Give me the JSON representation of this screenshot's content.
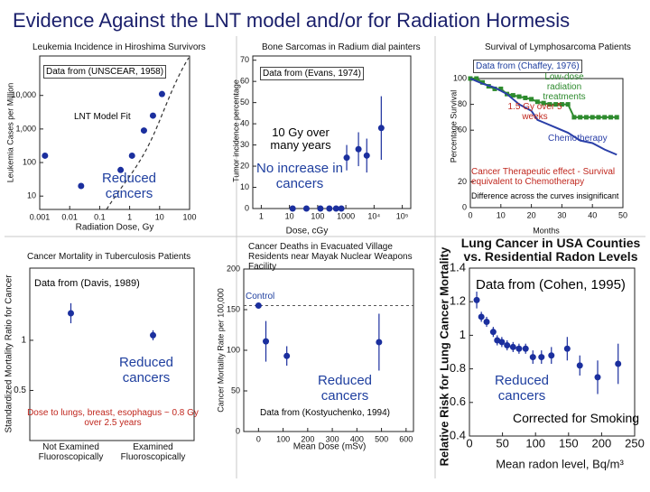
{
  "slide_title": "Evidence Against the LNT model and/or for Radiation Hormesis",
  "chart_data": [
    {
      "type": "scatter",
      "title": "Leukemia Incidence in Hiroshima Survivors",
      "x_label": "Radiation Dose, Gy",
      "y_label": "Leukemia Cases per Million",
      "xscale": "log",
      "yscale": "log",
      "xlim": [
        0.001,
        100
      ],
      "ylim": [
        4,
        150000
      ],
      "xticks": [
        0.001,
        0.01,
        0.1,
        1,
        10,
        100
      ],
      "yticks": [
        10,
        100,
        {
          "value": 1000,
          "label": "1,000"
        },
        {
          "value": 10000,
          "label": "10,000"
        }
      ],
      "annotations": [
        "Data from (UNSCEAR, 1958)",
        "LNT Model Fit",
        "Reduced cancers"
      ],
      "series": [
        {
          "color": "#1b2f9e",
          "x": [
            0.0015,
            0.024,
            0.5,
            1.2,
            3,
            6,
            12
          ],
          "values": [
            160,
            20,
            60,
            160,
            900,
            2500,
            11000
          ]
        }
      ]
    },
    {
      "type": "scatter",
      "title": "Bone Sarcomas in Radium dial painters",
      "x_label": "Dose, cGy",
      "y_label": "Tumor incidence percentage",
      "xscale": "log",
      "xlim": [
        0.5,
        200000
      ],
      "ylim": [
        0,
        72
      ],
      "xticks": [
        1,
        10,
        100,
        1000,
        {
          "value": 10000,
          "label": "10⁴"
        },
        {
          "value": 100000,
          "label": "10⁵"
        }
      ],
      "yticks": [
        0,
        10,
        20,
        30,
        40,
        50,
        60,
        70
      ],
      "annotations": [
        "Data from (Evans, 1974)",
        "10 Gy over many years",
        "No increase in cancers"
      ],
      "series": [
        {
          "color": "#1b2f9e",
          "x": [
            13,
            40,
            125,
            260,
            450,
            690,
            1070,
            2800,
            5500,
            18000
          ],
          "values": [
            0,
            0,
            0,
            0,
            0,
            0,
            24,
            28,
            25,
            38
          ],
          "errors": [
            null,
            null,
            null,
            null,
            null,
            null,
            6,
            8,
            8,
            15
          ]
        }
      ]
    },
    {
      "type": "line",
      "title": "Survival of Lymphosarcoma Patients",
      "x_label": "Months",
      "y_label": "Percentage Survival",
      "xlim": [
        0,
        50
      ],
      "ylim": [
        0,
        100
      ],
      "xticks": [
        0,
        10,
        20,
        30,
        40,
        50
      ],
      "yticks": [
        0,
        20,
        60,
        80,
        100
      ],
      "annotations": [
        "Data from (Chaffey, 1976)",
        "1.5 Gy over 5 weeks",
        "Cancer Therapeutic effect - Survival equivalent to Chemotherapy",
        "Difference across the curves insignificant"
      ],
      "series": [
        {
          "name": "Low-dose radiation treatments",
          "color": "#2e8b2e",
          "marker": "square",
          "x": [
            0,
            2,
            4,
            6,
            8,
            10,
            12,
            14,
            16,
            18,
            20,
            22,
            24,
            26,
            28,
            30,
            32,
            34,
            36,
            38,
            40,
            42,
            44,
            46,
            48
          ],
          "values": [
            100,
            100,
            97,
            94,
            92,
            92,
            88,
            87,
            86,
            85,
            84,
            82,
            81,
            80,
            80,
            80,
            80,
            70,
            70,
            70,
            70,
            70,
            70,
            70,
            70
          ]
        },
        {
          "name": "Chemotherapy",
          "color": "#2a3fa8",
          "x": [
            0,
            4,
            8,
            12,
            16,
            20,
            22,
            24,
            28,
            32,
            36,
            40,
            44,
            48
          ],
          "values": [
            100,
            96,
            93,
            88,
            80,
            75,
            68,
            66,
            62,
            58,
            52,
            50,
            45,
            41
          ]
        }
      ]
    },
    {
      "type": "dot",
      "title": "Cancer Mortality in Tuberculosis Patients",
      "y_label": "Standardized Mortality Ratio for Cancer",
      "categories": [
        "Not Examined Fluoroscopically",
        "Examined Fluoroscopically"
      ],
      "ylim": [
        0,
        1.72
      ],
      "yticks": [
        0.5,
        1
      ],
      "annotations": [
        "Data from (Davis, 1989)",
        "Reduced cancers",
        "Dose to lungs, breast, esophagus ~ 0.8 Gy over 2.5 years"
      ],
      "series": [
        {
          "color": "#1b2f9e",
          "values": [
            1.27,
            1.05
          ],
          "errors": [
            0.1,
            0.05
          ]
        }
      ]
    },
    {
      "type": "scatter",
      "title": "Cancer Deaths in Evacuated Village Residents near Mayak Nuclear Weapons Facility",
      "x_label": "Mean Dose (mSv)",
      "y_label": "Cancer Mortality Rate per 100,000",
      "xlim": [
        -60,
        630
      ],
      "ylim": [
        0,
        200
      ],
      "xticks": [
        0,
        100,
        200,
        300,
        400,
        500,
        600
      ],
      "yticks": [
        0,
        50,
        100,
        150,
        200
      ],
      "control": {
        "label": "Control",
        "value": 155
      },
      "annotations": [
        "Data from (Kostyuchenko, 1994)",
        "Reduced cancers"
      ],
      "series": [
        {
          "color": "#1b2f9e",
          "x": [
            0,
            30,
            115,
            490
          ],
          "values": [
            155,
            111,
            93,
            110
          ],
          "errors": [
            null,
            25,
            12,
            35
          ]
        }
      ]
    },
    {
      "type": "scatter",
      "title": "Lung Cancer in USA Counties vs. Residential Radon Levels",
      "x_label": "Mean radon level, Bq/m³",
      "y_label": "Relative Risk for Lung Cancer Mortality",
      "xlim": [
        0,
        250
      ],
      "ylim": [
        0.4,
        1.4
      ],
      "xticks": [
        0,
        50,
        100,
        150,
        200,
        250
      ],
      "yticks": [
        0.4,
        0.6,
        0.8,
        1,
        1.2,
        1.4
      ],
      "annotations": [
        "Data from (Cohen, 1995)",
        "Reduced cancers",
        "Corrected for Smoking"
      ],
      "series": [
        {
          "color": "#1b2f9e",
          "x": [
            11,
            18,
            26,
            36,
            42,
            49,
            57,
            66,
            75,
            85,
            96,
            109,
            124,
            148,
            167,
            194,
            225
          ],
          "values": [
            1.21,
            1.11,
            1.08,
            1.02,
            0.97,
            0.96,
            0.94,
            0.93,
            0.92,
            0.92,
            0.87,
            0.87,
            0.88,
            0.92,
            0.82,
            0.75,
            0.83
          ],
          "errors": [
            0.05,
            0.03,
            0.03,
            0.03,
            0.03,
            0.03,
            0.03,
            0.03,
            0.03,
            0.03,
            0.04,
            0.04,
            0.05,
            0.07,
            0.06,
            0.1,
            0.12
          ]
        }
      ]
    }
  ]
}
